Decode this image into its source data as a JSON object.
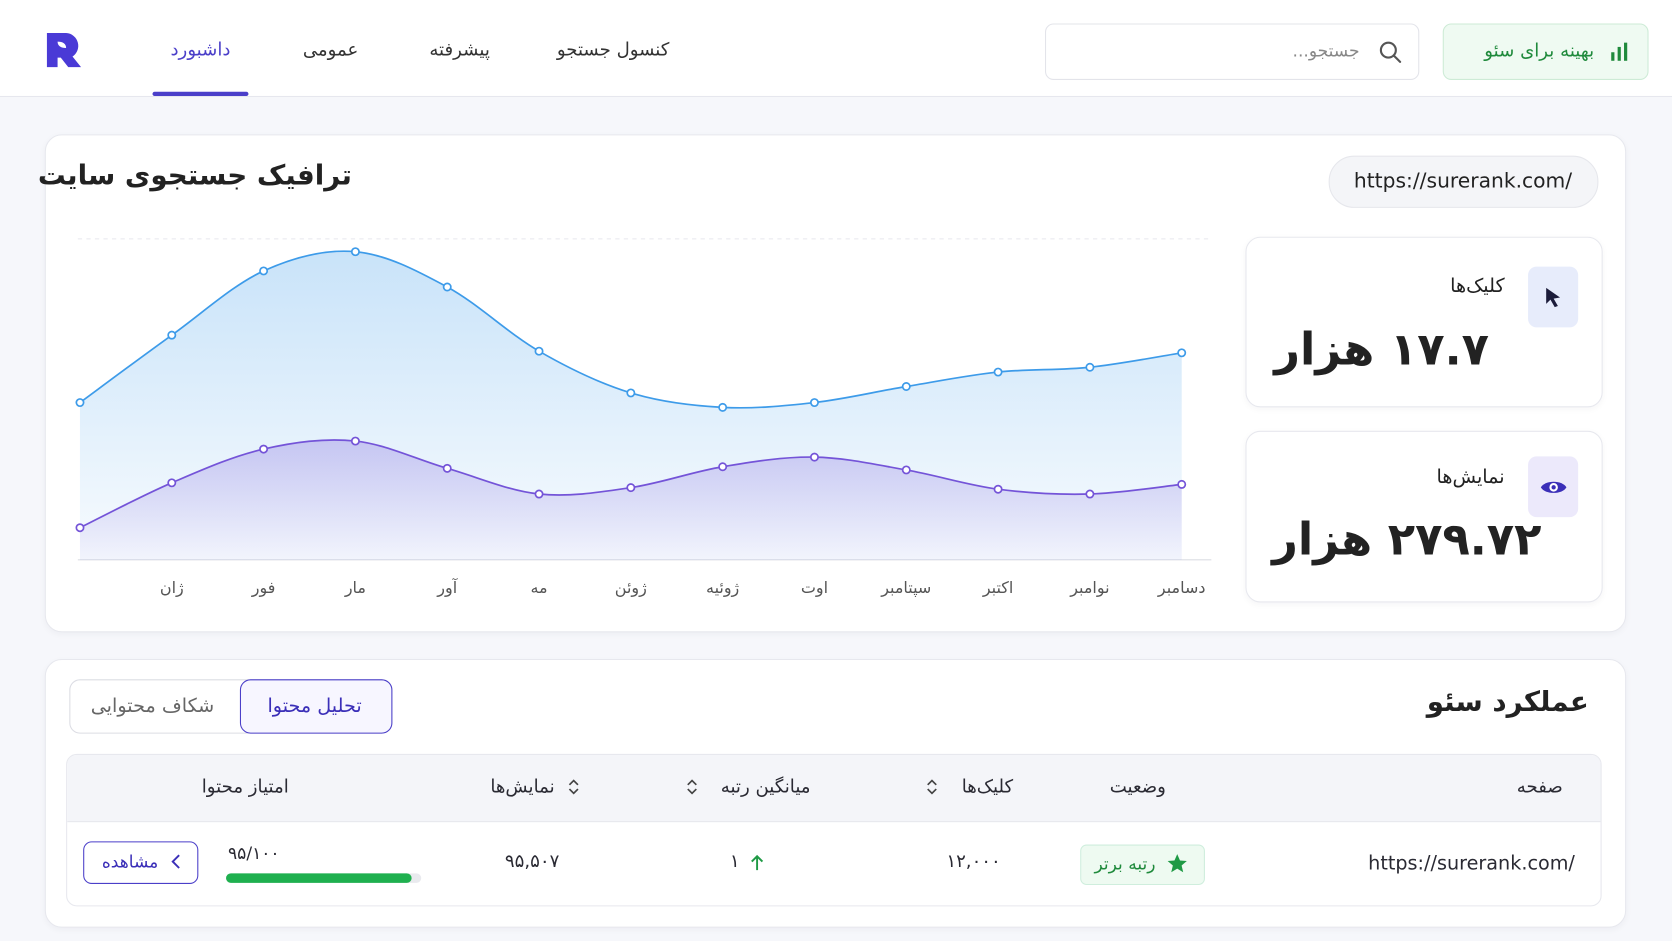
{
  "header": {
    "nav": [
      "داشبورد",
      "عمومی",
      "پیشرفته",
      "کنسول جستجو"
    ],
    "search_placeholder": "جستجو...",
    "cta": "بهینه برای سئو"
  },
  "traffic": {
    "site_url": "https://surerank.com/",
    "stats": [
      {
        "label": "کلیک‌ها",
        "value": "۱۷.۷ هزار"
      },
      {
        "label": "نمایش‌ها",
        "value": "۲۷۹.۷۲ هزار"
      }
    ]
  },
  "chart_data": {
    "type": "line",
    "title": "ترافیک جستجوی سایت",
    "categories": [
      null,
      "ژان",
      "فور",
      "مار",
      "آور",
      "مه",
      "ژوئن",
      "ژوئیه",
      "اوت",
      "سپتامبر",
      "اکتبر",
      "نوامبر",
      "دسامبر"
    ],
    "ylim": [
      0,
      100
    ],
    "series": [
      {
        "color": "#3d9be9",
        "values": [
          49,
          70,
          90,
          96,
          85,
          65,
          52,
          47.5,
          49,
          54,
          58.5,
          60,
          64.5
        ]
      },
      {
        "color": "#7454d8",
        "values": [
          10,
          24,
          34.5,
          37,
          28.5,
          20.5,
          22.5,
          29,
          32,
          28,
          22,
          20.5,
          23.5
        ]
      }
    ]
  },
  "seo": {
    "title": "عملکرد سئو",
    "tabs": [
      "تحلیل محتوا",
      "شکاف محتوایی"
    ],
    "columns": [
      "صفحه",
      "وضعیت",
      "کلیک‌ها",
      "میانگین رتبه",
      "نمایش‌ها",
      "امتیاز محتوا"
    ],
    "rows": [
      {
        "page": "https://surerank.com/",
        "status": "رتبه برتر",
        "clicks": "۱۲,۰۰۰",
        "avg_rank": "۱",
        "impressions": "۹۵,۵۰۷",
        "score": {
          "value": 95,
          "max": 100,
          "label": "۹۵/۱۰۰"
        },
        "action": "مشاهده"
      }
    ]
  }
}
